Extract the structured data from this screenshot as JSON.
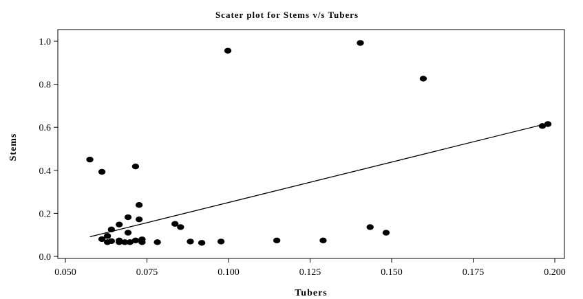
{
  "chart_data": {
    "type": "scatter",
    "title": "Scater plot for Stems v/s Tubers",
    "xlabel": "Tubers",
    "ylabel": "Stems",
    "xlim": [
      0.05,
      0.2
    ],
    "ylim": [
      0.0,
      1.0
    ],
    "grid": false,
    "legend": "none",
    "x_ticks": [
      "0.050",
      "0.075",
      "0.100",
      "0.125",
      "0.150",
      "0.175",
      "0.200"
    ],
    "y_ticks": [
      "0.0",
      "0.2",
      "0.4",
      "0.6",
      "0.8",
      "1.0"
    ],
    "points": [
      {
        "x": 0.0575,
        "y": 0.45
      },
      {
        "x": 0.0612,
        "y": 0.393
      },
      {
        "x": 0.0715,
        "y": 0.418
      },
      {
        "x": 0.0998,
        "y": 0.956
      },
      {
        "x": 0.1404,
        "y": 0.992
      },
      {
        "x": 0.1597,
        "y": 0.826
      },
      {
        "x": 0.1962,
        "y": 0.606
      },
      {
        "x": 0.1979,
        "y": 0.615
      },
      {
        "x": 0.0726,
        "y": 0.239
      },
      {
        "x": 0.0726,
        "y": 0.172
      },
      {
        "x": 0.0692,
        "y": 0.182
      },
      {
        "x": 0.0665,
        "y": 0.148
      },
      {
        "x": 0.0641,
        "y": 0.125
      },
      {
        "x": 0.0692,
        "y": 0.11
      },
      {
        "x": 0.0629,
        "y": 0.095
      },
      {
        "x": 0.0612,
        "y": 0.08
      },
      {
        "x": 0.0629,
        "y": 0.066
      },
      {
        "x": 0.0641,
        "y": 0.071
      },
      {
        "x": 0.0665,
        "y": 0.074
      },
      {
        "x": 0.0665,
        "y": 0.066
      },
      {
        "x": 0.0682,
        "y": 0.066
      },
      {
        "x": 0.0698,
        "y": 0.066
      },
      {
        "x": 0.0715,
        "y": 0.074
      },
      {
        "x": 0.0735,
        "y": 0.079
      },
      {
        "x": 0.0735,
        "y": 0.066
      },
      {
        "x": 0.0782,
        "y": 0.066
      },
      {
        "x": 0.0836,
        "y": 0.151
      },
      {
        "x": 0.0853,
        "y": 0.136
      },
      {
        "x": 0.0883,
        "y": 0.069
      },
      {
        "x": 0.0918,
        "y": 0.063
      },
      {
        "x": 0.0977,
        "y": 0.069
      },
      {
        "x": 0.1148,
        "y": 0.074
      },
      {
        "x": 0.129,
        "y": 0.074
      },
      {
        "x": 0.1434,
        "y": 0.136
      },
      {
        "x": 0.1483,
        "y": 0.11
      }
    ],
    "trendline": {
      "x": [
        0.0575,
        0.1962
      ],
      "y": [
        0.091,
        0.612
      ]
    }
  },
  "style": {
    "marker_color": "#000000",
    "line_color": "#000000",
    "background": "#ffffff"
  }
}
